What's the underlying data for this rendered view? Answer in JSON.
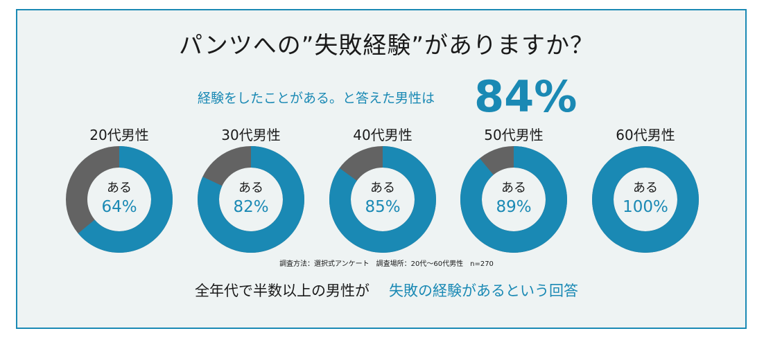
{
  "title": "パンツへの”失敗経験”がありますか？",
  "subtitle": "経験をしたことがある。と答えた男性は",
  "headline_value": "84%",
  "center_label": "ある",
  "colors": {
    "accent": "#1a89b4",
    "remainder": "#636363",
    "panel_bg": "#eef3f3",
    "text": "#1a1a1a"
  },
  "chart_data": {
    "type": "pie",
    "subtype": "donut",
    "unit": "%",
    "series": [
      {
        "name": "20代男性",
        "value": 64,
        "label": "64%"
      },
      {
        "name": "30代男性",
        "value": 82,
        "label": "82%"
      },
      {
        "name": "40代男性",
        "value": 85,
        "label": "85%"
      },
      {
        "name": "50代男性",
        "value": 89,
        "label": "89%"
      },
      {
        "name": "60代男性",
        "value": 100,
        "label": "100%"
      }
    ]
  },
  "note": "調査方法：選択式アンケート　調査場所：20代～60代男性　n=270",
  "summary": {
    "text": "全年代で半数以上の男性が",
    "accent": "失敗の経験があるという回答"
  }
}
